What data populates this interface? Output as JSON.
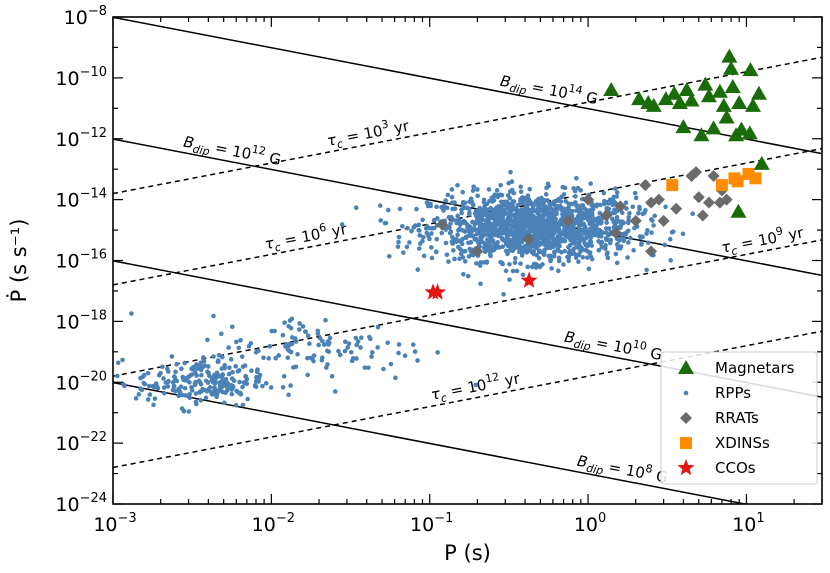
{
  "chart_data": {
    "type": "scatter",
    "xlabel": "P (s)",
    "ylabel": "Ṗ (s s⁻¹)",
    "xscale": "log",
    "yscale": "log",
    "xlim": [
      0.001,
      30
    ],
    "ylim": [
      1e-24,
      1e-08
    ],
    "x_ticks": [
      {
        "base": "10",
        "exp": "−3",
        "value": 0.001
      },
      {
        "base": "10",
        "exp": "−2",
        "value": 0.01
      },
      {
        "base": "10",
        "exp": "−1",
        "value": 0.1
      },
      {
        "base": "10",
        "exp": "0",
        "value": 1
      },
      {
        "base": "10",
        "exp": "1",
        "value": 10
      }
    ],
    "y_ticks": [
      {
        "base": "10",
        "exp": "−24",
        "value": 1e-24
      },
      {
        "base": "10",
        "exp": "−22",
        "value": 1e-22
      },
      {
        "base": "10",
        "exp": "−20",
        "value": 1e-20
      },
      {
        "base": "10",
        "exp": "−18",
        "value": 1e-18
      },
      {
        "base": "10",
        "exp": "−16",
        "value": 1e-16
      },
      {
        "base": "10",
        "exp": "−14",
        "value": 1e-14
      },
      {
        "base": "10",
        "exp": "−12",
        "value": 1e-12
      },
      {
        "base": "10",
        "exp": "−10",
        "value": 1e-10
      },
      {
        "base": "10",
        "exp": "−8",
        "value": 1e-08
      }
    ],
    "grid": false,
    "legend_position": "lower-right",
    "reference_lines": [
      {
        "kind": "B_dip",
        "value_gauss": 100000000000000.0,
        "style": "solid",
        "label": {
          "sym": "B",
          "sub": "dip",
          "eq": " = 10",
          "sup": "14",
          "unit": " G"
        },
        "label_at_P": 0.55
      },
      {
        "kind": "B_dip",
        "value_gauss": 1000000000000.0,
        "style": "solid",
        "label": {
          "sym": "B",
          "sub": "dip",
          "eq": " = 10",
          "sup": "12",
          "unit": " G"
        },
        "label_at_P": 0.0055
      },
      {
        "kind": "B_dip",
        "value_gauss": 10000000000.0,
        "style": "solid",
        "label": {
          "sym": "B",
          "sub": "dip",
          "eq": " = 10",
          "sup": "10",
          "unit": " G"
        },
        "label_at_P": 1.4
      },
      {
        "kind": "B_dip",
        "value_gauss": 100000000.0,
        "style": "solid",
        "label": {
          "sym": "B",
          "sub": "dip",
          "eq": " = 10",
          "sup": "8",
          "unit": " G"
        },
        "label_at_P": 1.6
      },
      {
        "kind": "tau_c",
        "value_years": 1000.0,
        "style": "dashed",
        "label": {
          "sym": "τ",
          "sub": "c",
          "eq": " = 10",
          "sup": "3",
          "unit": " yr"
        },
        "label_at_P": 0.042
      },
      {
        "kind": "tau_c",
        "value_years": 1000000.0,
        "style": "dashed",
        "label": {
          "sym": "τ",
          "sub": "c",
          "eq": " = 10",
          "sup": "6",
          "unit": " yr"
        },
        "label_at_P": 0.017
      },
      {
        "kind": "tau_c",
        "value_years": 1000000000.0,
        "style": "dashed",
        "label": {
          "sym": "τ",
          "sub": "c",
          "eq": " = 10",
          "sup": "9",
          "unit": " yr"
        },
        "label_at_P": 13
      },
      {
        "kind": "tau_c",
        "value_years": 1000000000000.0,
        "style": "dashed",
        "label": {
          "sym": "τ",
          "sub": "c",
          "eq": " = 10",
          "sup": "12",
          "unit": " yr"
        },
        "label_at_P": 0.2
      }
    ],
    "series": [
      {
        "name": "Magnetars",
        "marker": "triangle",
        "color": "#1a6b0a",
        "points": [
          [
            1.4,
            4e-11
          ],
          [
            2.1,
            2e-11
          ],
          [
            2.4,
            1.5e-11
          ],
          [
            2.6,
            1.2e-11
          ],
          [
            3.1,
            2e-11
          ],
          [
            3.5,
            3e-11
          ],
          [
            3.8,
            1.5e-11
          ],
          [
            4.2,
            4e-11
          ],
          [
            4.5,
            1.8e-11
          ],
          [
            5.5,
            6e-11
          ],
          [
            5.8,
            2.5e-11
          ],
          [
            6.2,
            2.2e-12
          ],
          [
            6.8,
            3.5e-11
          ],
          [
            7.2,
            1.2e-11
          ],
          [
            7.5,
            5e-12
          ],
          [
            7.8,
            5e-10
          ],
          [
            8.0,
            2e-10
          ],
          [
            8.2,
            5e-11
          ],
          [
            8.6,
            1.3e-12
          ],
          [
            9.0,
            1.5e-11
          ],
          [
            9.3,
            2e-12
          ],
          [
            10.5,
            1.5e-12
          ],
          [
            10.6,
            1.8e-10
          ],
          [
            11.0,
            1.2e-11
          ],
          [
            12.0,
            3e-11
          ],
          [
            12.5,
            1.5e-13
          ],
          [
            5.2,
            1.3e-12
          ],
          [
            4.0,
            2.4e-12
          ],
          [
            8.9,
            4e-15
          ]
        ]
      },
      {
        "name": "RPPs",
        "marker": "dot",
        "color": "#4a82b8",
        "clusters": [
          {
            "center_log_P": -0.35,
            "center_log_Pdot": -14.9,
            "sd_log_P": 0.32,
            "sd_log_Pdot": 0.55,
            "count": 1500
          },
          {
            "center_log_P": -2.45,
            "center_log_Pdot": -20.0,
            "sd_log_P": 0.2,
            "sd_log_Pdot": 0.4,
            "count": 220
          },
          {
            "center_log_P": -1.7,
            "center_log_Pdot": -18.9,
            "sd_log_P": 0.35,
            "sd_log_Pdot": 0.55,
            "count": 120
          }
        ]
      },
      {
        "name": "RRATs",
        "marker": "diamond",
        "color": "#6b6b6b",
        "points": [
          [
            0.12,
            1.5e-15
          ],
          [
            0.2,
            2e-16
          ],
          [
            0.42,
            5e-16
          ],
          [
            1.3,
            3e-15
          ],
          [
            1.5,
            8e-16
          ],
          [
            2.0,
            2e-15
          ],
          [
            2.3,
            3e-14
          ],
          [
            2.5,
            8e-15
          ],
          [
            2.8,
            1e-14
          ],
          [
            3.0,
            2e-15
          ],
          [
            3.6,
            5e-15
          ],
          [
            4.5,
            6e-14
          ],
          [
            4.8,
            8e-14
          ],
          [
            5.0,
            1.2e-14
          ],
          [
            5.3,
            3e-15
          ],
          [
            5.8,
            8e-15
          ],
          [
            6.2,
            6e-14
          ],
          [
            6.8,
            8e-15
          ],
          [
            7.0,
            2e-14
          ],
          [
            7.5,
            1e-14
          ],
          [
            0.75,
            2e-15
          ],
          [
            2.5,
            2e-16
          ],
          [
            1.0,
            1e-14
          ],
          [
            1.6,
            6e-15
          ]
        ]
      },
      {
        "name": "XDINSs",
        "marker": "square",
        "color": "#ff8c00",
        "points": [
          [
            3.4,
            3e-14
          ],
          [
            7.0,
            3e-14
          ],
          [
            8.4,
            5e-14
          ],
          [
            8.8,
            4e-14
          ],
          [
            10.3,
            7e-14
          ],
          [
            11.4,
            5e-14
          ]
        ]
      },
      {
        "name": "CCOs",
        "marker": "star",
        "color": "#e81414",
        "points": [
          [
            0.105,
            9e-18
          ],
          [
            0.112,
            9e-18
          ],
          [
            0.424,
            2.2e-17
          ]
        ]
      }
    ]
  }
}
